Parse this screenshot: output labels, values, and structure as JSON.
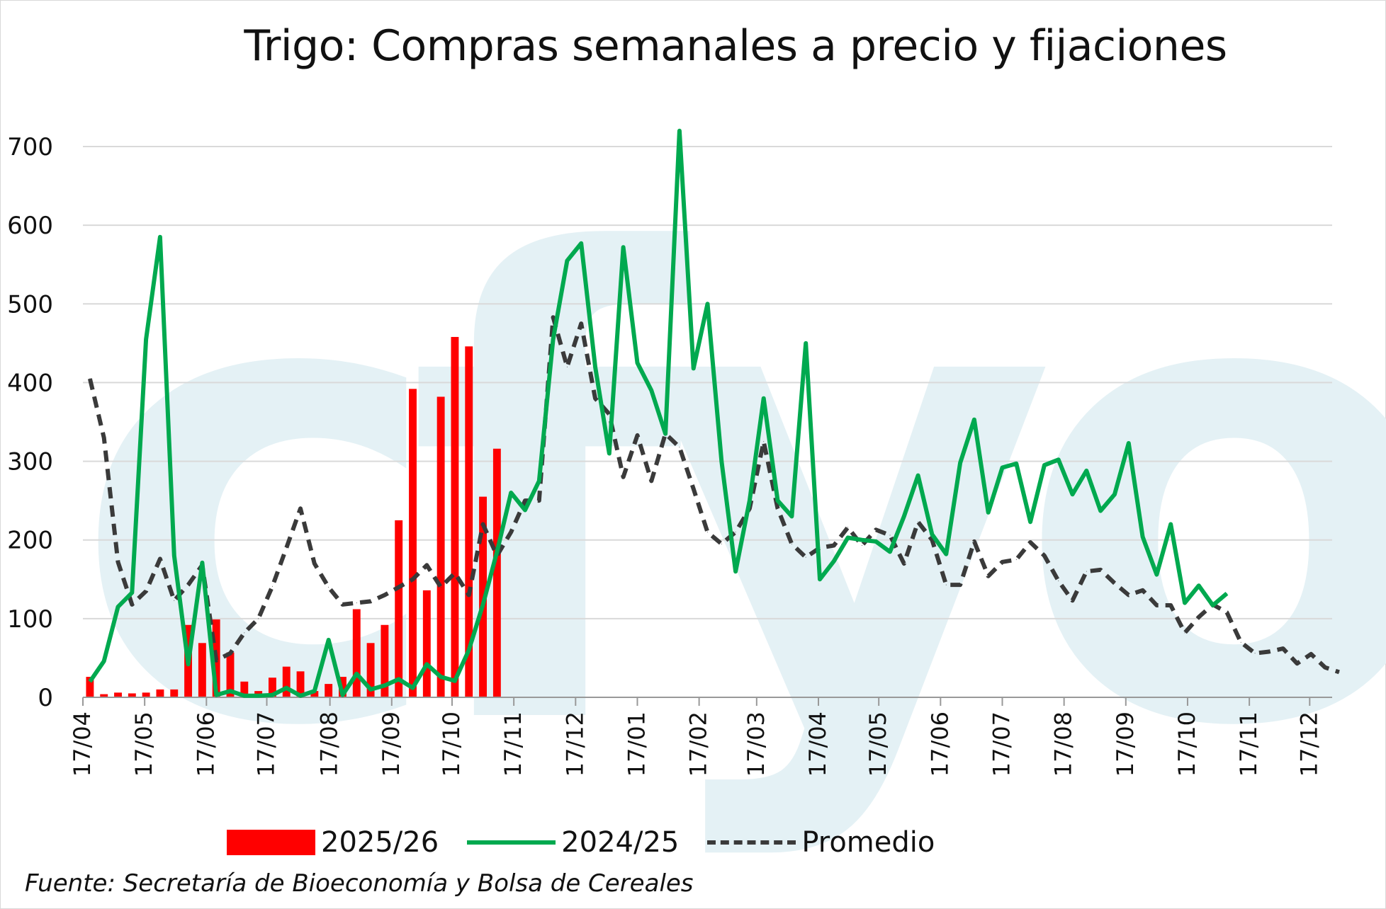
{
  "title": "Trigo: Compras semanales a precio y fijaciones",
  "source": "Fuente: Secretaría de Bioeconomía y Bolsa de Cereales",
  "colors": {
    "bars": "#ff0000",
    "line": "#00a94f",
    "average": "#3a3a3a",
    "watermark": "#e4f1f5"
  },
  "legend": {
    "bars": "2025/26",
    "line": "2024/25",
    "average": "Promedio"
  },
  "watermark": "cfyo",
  "chart_data": {
    "type": "bar+line",
    "title": "Trigo: Compras semanales a precio y fijaciones",
    "ylim": [
      0,
      700
    ],
    "yticks": [
      0,
      100,
      200,
      300,
      400,
      500,
      600,
      700
    ],
    "grid": true,
    "legend_position": "bottom",
    "x_labels": [
      "17/04",
      "17/05",
      "17/06",
      "17/07",
      "17/08",
      "17/09",
      "17/10",
      "17/11",
      "17/12",
      "17/01",
      "17/02",
      "17/03",
      "17/04",
      "17/05",
      "17/06",
      "17/07",
      "17/08",
      "17/09",
      "17/10",
      "17/11",
      "17/12"
    ],
    "x_label_week": [
      0,
      4.4,
      8.8,
      13.1,
      17.6,
      22,
      26.3,
      30.7,
      35.1,
      39.5,
      43.9,
      48,
      52.4,
      56.7,
      61.1,
      65.5,
      69.9,
      74.3,
      78.7,
      83.1,
      87.4
    ],
    "weeks_total": 89,
    "series": [
      {
        "name": "2025/26",
        "type": "bar",
        "values": [
          26,
          4,
          6,
          5,
          6,
          10,
          10,
          92,
          69,
          99,
          57,
          20,
          8,
          25,
          39,
          33,
          8,
          17,
          26,
          112,
          69,
          92,
          225,
          392,
          136,
          382,
          458,
          446,
          255,
          316
        ]
      },
      {
        "name": "2024/25",
        "type": "line",
        "values": [
          20,
          46,
          115,
          133,
          455,
          585,
          180,
          42,
          171,
          3,
          8,
          2,
          2,
          3,
          12,
          2,
          8,
          73,
          3,
          30,
          10,
          15,
          23,
          12,
          42,
          26,
          21,
          60,
          118,
          185,
          260,
          238,
          275,
          455,
          555,
          577,
          420,
          310,
          572,
          425,
          390,
          335,
          720,
          418,
          500,
          300,
          160,
          250,
          380,
          250,
          230,
          450,
          150,
          173,
          203,
          200,
          198,
          185,
          230,
          282,
          207,
          182,
          298,
          353,
          235,
          292,
          297,
          223,
          295,
          302,
          258,
          288,
          237,
          258,
          323,
          204,
          156,
          220,
          120,
          142,
          117,
          132
        ]
      },
      {
        "name": "Promedio",
        "type": "line-dashed",
        "values": [
          405,
          330,
          172,
          118,
          135,
          176,
          123,
          143,
          168,
          47,
          56,
          82,
          100,
          141,
          190,
          240,
          170,
          140,
          118,
          120,
          122,
          130,
          140,
          150,
          168,
          140,
          158,
          130,
          220,
          180,
          210,
          250,
          250,
          483,
          420,
          475,
          380,
          360,
          280,
          333,
          275,
          335,
          318,
          265,
          210,
          195,
          210,
          240,
          325,
          240,
          195,
          178,
          190,
          193,
          216,
          193,
          213,
          206,
          170,
          223,
          200,
          143,
          143,
          198,
          154,
          172,
          175,
          197,
          180,
          148,
          123,
          160,
          162,
          145,
          130,
          136,
          117,
          117,
          82,
          102,
          118,
          108,
          70,
          56,
          58,
          62,
          43,
          55,
          38,
          32
        ]
      }
    ]
  }
}
